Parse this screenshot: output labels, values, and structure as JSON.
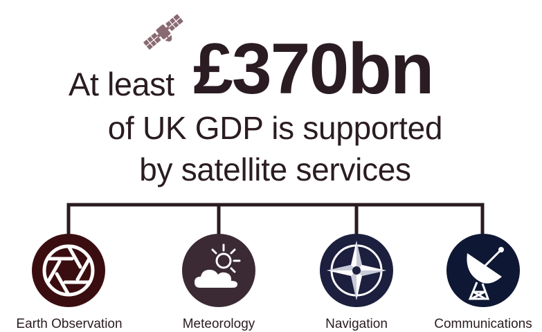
{
  "headline": {
    "prefix": "At least",
    "figure": "£370bn"
  },
  "subline": {
    "line1": "of UK GDP is supported",
    "line2": "by satellite services"
  },
  "categories": [
    {
      "label": "Earth Observation",
      "icon": "camera-aperture-icon",
      "color": "#3a0e10"
    },
    {
      "label": "Meteorology",
      "icon": "sun-cloud-icon",
      "color": "#3b2a34"
    },
    {
      "label": "Navigation",
      "icon": "compass-rose-icon",
      "color": "#1d1f3f"
    },
    {
      "label": "Communications",
      "icon": "satellite-dish-icon",
      "color": "#0e1733"
    }
  ],
  "colors": {
    "text": "#2a1c22",
    "connector": "#2a1c22",
    "satellite_icon": "#8a6a72"
  }
}
